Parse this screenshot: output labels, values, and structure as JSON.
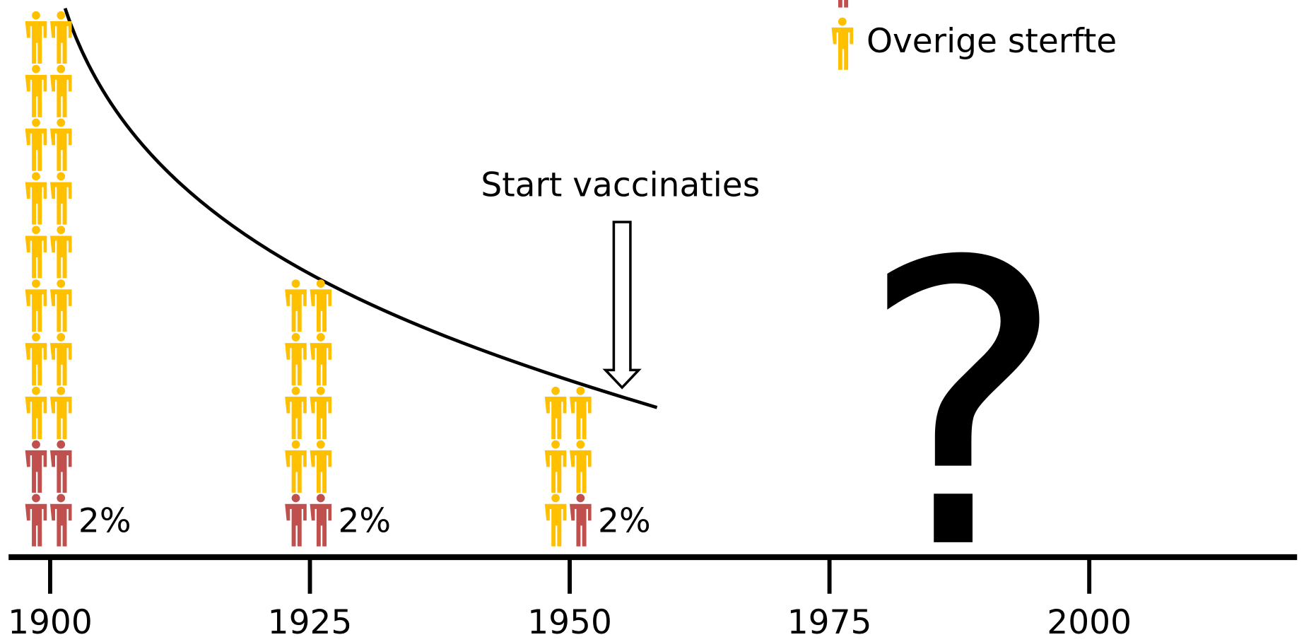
{
  "chart_data": {
    "type": "pictogram",
    "x": [
      1900,
      1925,
      1950
    ],
    "series": [
      {
        "color": "#c0504d",
        "values": [
          4,
          2,
          1
        ]
      },
      {
        "name": "Overige sterfte",
        "color": "#ffc000",
        "values": [
          16,
          8,
          5
        ]
      }
    ],
    "labels": [
      "2%",
      "2%",
      "2%"
    ],
    "label_color": "#c00000",
    "xlim": [
      1896,
      2020
    ],
    "xticks": [
      1900,
      1925,
      1950,
      1975,
      2000
    ],
    "annotations": {
      "vaccination": "Start vaccinaties",
      "future": "?"
    }
  }
}
